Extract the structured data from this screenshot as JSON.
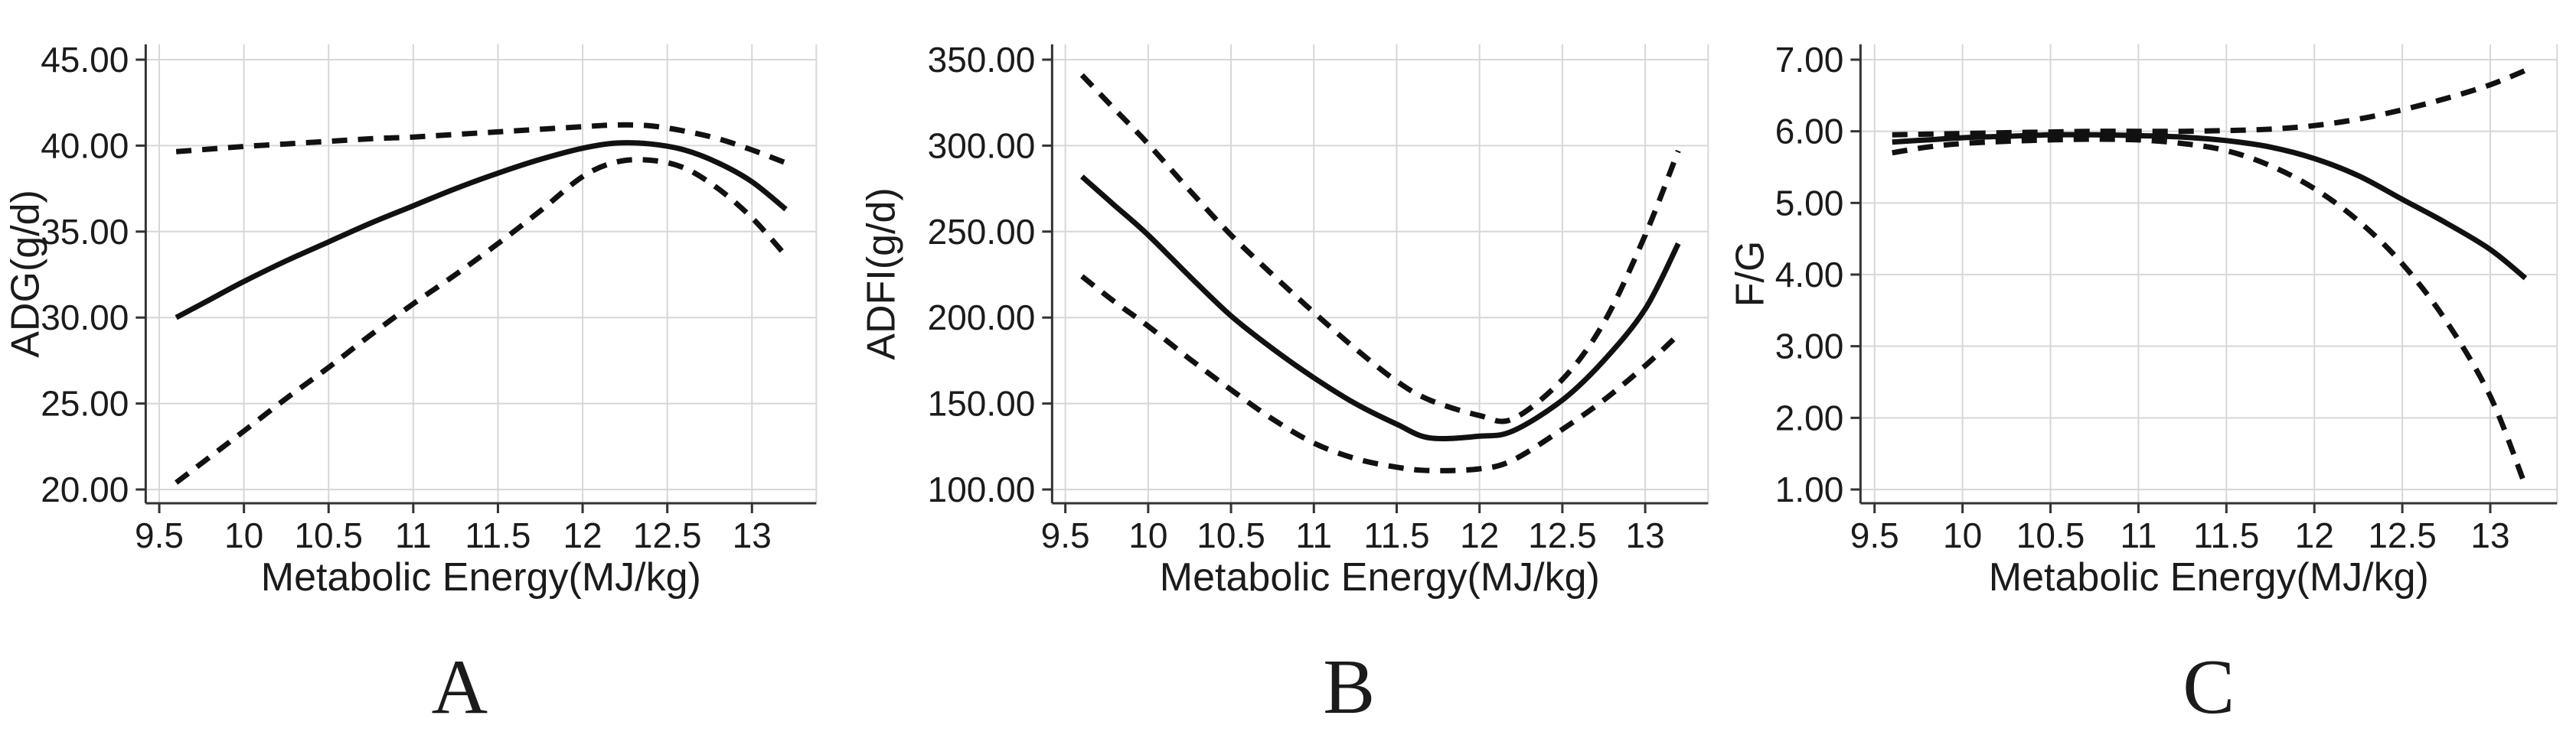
{
  "figure": {
    "background": "#ffffff",
    "line_color": "#111111",
    "grid_color": "#d7d7d7",
    "axis_color": "#333333",
    "text_color": "#1b1b1b"
  },
  "chart_data": [
    {
      "type": "line",
      "letter": "A",
      "xlabel": "Metabolic Energy(MJ/kg)",
      "ylabel": "ADG(g/d)",
      "x_range": [
        9.42,
        13.38
      ],
      "ylim": [
        20,
        45
      ],
      "x_ticks": [
        9.5,
        10,
        10.5,
        11,
        11.5,
        12,
        12.5,
        13
      ],
      "x_tick_labels": [
        "9.5",
        "10",
        "10.5",
        "11",
        "11.5",
        "12",
        "12.5",
        "13"
      ],
      "y_ticks": [
        20,
        25,
        30,
        35,
        40,
        45
      ],
      "y_tick_labels": [
        "20.00",
        "25.00",
        "30.00",
        "35.00",
        "40.00",
        "45.00"
      ],
      "grid": true,
      "legend": "none",
      "x": [
        9.6,
        9.8,
        10.0,
        10.25,
        10.5,
        10.75,
        11.0,
        11.25,
        11.5,
        11.75,
        12.0,
        12.2,
        12.4,
        12.6,
        12.8,
        13.0,
        13.2
      ],
      "series": [
        {
          "name": "mean",
          "line": "solid",
          "values": [
            30.0,
            31.05,
            32.1,
            33.3,
            34.4,
            35.5,
            36.5,
            37.5,
            38.4,
            39.2,
            39.85,
            40.15,
            40.1,
            39.75,
            39.0,
            37.9,
            36.3
          ]
        },
        {
          "name": "upper-band",
          "line": "dashed",
          "values": [
            39.65,
            39.8,
            39.95,
            40.1,
            40.25,
            40.4,
            40.5,
            40.65,
            40.8,
            40.95,
            41.1,
            41.2,
            41.15,
            40.85,
            40.4,
            39.75,
            39.0
          ]
        },
        {
          "name": "lower-band",
          "line": "dashed",
          "values": [
            20.4,
            21.9,
            23.4,
            25.3,
            27.1,
            29.0,
            30.8,
            32.5,
            34.3,
            36.2,
            38.2,
            39.05,
            39.15,
            38.7,
            37.5,
            35.8,
            33.6
          ]
        }
      ]
    },
    {
      "type": "line",
      "letter": "B",
      "xlabel": "Metabolic Energy(MJ/kg)",
      "ylabel": "ADFI(g/d)",
      "x_range": [
        9.42,
        13.38
      ],
      "ylim": [
        100,
        350
      ],
      "x_ticks": [
        9.5,
        10,
        10.5,
        11,
        11.5,
        12,
        12.5,
        13
      ],
      "x_tick_labels": [
        "9.5",
        "10",
        "10.5",
        "11",
        "11.5",
        "12",
        "12.5",
        "13"
      ],
      "y_ticks": [
        100,
        150,
        200,
        250,
        300,
        350
      ],
      "y_tick_labels": [
        "100.00",
        "150.00",
        "200.00",
        "250.00",
        "300.00",
        "350.00"
      ],
      "grid": true,
      "legend": "none",
      "x": [
        9.6,
        9.8,
        10.0,
        10.25,
        10.5,
        10.75,
        11.0,
        11.25,
        11.5,
        11.7,
        12.0,
        12.2,
        12.5,
        12.75,
        13.0,
        13.2
      ],
      "series": [
        {
          "name": "mean",
          "line": "solid",
          "values": [
            282,
            265,
            248,
            224,
            201,
            182,
            165,
            150,
            138,
            130,
            131,
            134,
            152,
            175,
            205,
            243
          ]
        },
        {
          "name": "upper-band",
          "line": "dashed",
          "values": [
            341,
            321,
            301,
            274,
            248,
            225,
            203,
            182,
            163,
            152,
            143,
            141,
            164,
            197,
            248,
            297
          ]
        },
        {
          "name": "lower-band",
          "line": "dashed",
          "values": [
            224,
            209,
            195,
            176,
            158,
            141,
            127,
            118,
            113,
            111,
            112,
            117,
            135,
            152,
            172,
            190
          ]
        }
      ]
    },
    {
      "type": "line",
      "letter": "C",
      "xlabel": "Metabolic Energy(MJ/kg)",
      "ylabel": "F/G",
      "x_range": [
        9.42,
        13.38
      ],
      "ylim": [
        1,
        7
      ],
      "x_ticks": [
        9.5,
        10,
        10.5,
        11,
        11.5,
        12,
        12.5,
        13
      ],
      "x_tick_labels": [
        "9.5",
        "10",
        "10.5",
        "11",
        "11.5",
        "12",
        "12.5",
        "13"
      ],
      "y_ticks": [
        1,
        2,
        3,
        4,
        5,
        6,
        7
      ],
      "y_tick_labels": [
        "1.00",
        "2.00",
        "3.00",
        "4.00",
        "5.00",
        "6.00",
        "7.00"
      ],
      "grid": true,
      "legend": "none",
      "x": [
        9.6,
        9.8,
        10.0,
        10.25,
        10.5,
        10.75,
        11.0,
        11.25,
        11.5,
        11.75,
        12.0,
        12.25,
        12.5,
        12.75,
        13.0,
        13.2
      ],
      "series": [
        {
          "name": "mean",
          "line": "solid",
          "values": [
            5.85,
            5.88,
            5.91,
            5.93,
            5.95,
            5.95,
            5.94,
            5.92,
            5.87,
            5.78,
            5.62,
            5.38,
            5.05,
            4.72,
            4.35,
            3.95
          ]
        },
        {
          "name": "upper-band",
          "line": "dashed",
          "values": [
            5.95,
            5.96,
            5.97,
            5.98,
            5.99,
            6.0,
            6.0,
            6.0,
            6.01,
            6.03,
            6.08,
            6.17,
            6.3,
            6.46,
            6.65,
            6.85
          ]
        },
        {
          "name": "lower-band",
          "line": "dashed",
          "values": [
            5.7,
            5.78,
            5.83,
            5.86,
            5.88,
            5.89,
            5.88,
            5.83,
            5.73,
            5.52,
            5.2,
            4.75,
            4.15,
            3.35,
            2.3,
            1.05
          ]
        }
      ]
    }
  ]
}
